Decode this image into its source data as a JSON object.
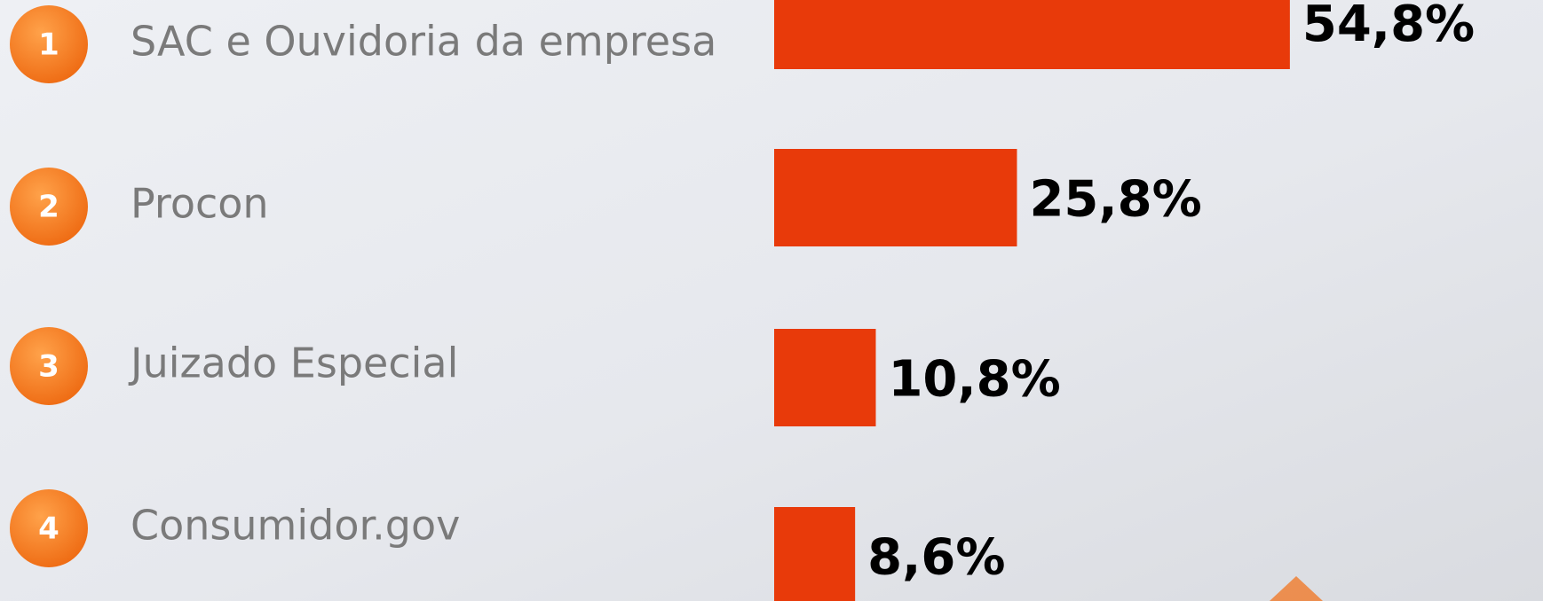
{
  "chart_data": {
    "type": "bar",
    "orientation": "horizontal",
    "ranks": [
      1,
      2,
      3,
      4
    ],
    "categories": [
      "SAC e Ouvidoria da empresa",
      "Procon",
      "Juizado Especial",
      "Consumidor.gov"
    ],
    "values": [
      54.8,
      25.8,
      10.8,
      8.6
    ],
    "value_labels": [
      "54,8%",
      "25,8%",
      "10,8%",
      "8,6%"
    ],
    "color": "#e83a0a"
  }
}
